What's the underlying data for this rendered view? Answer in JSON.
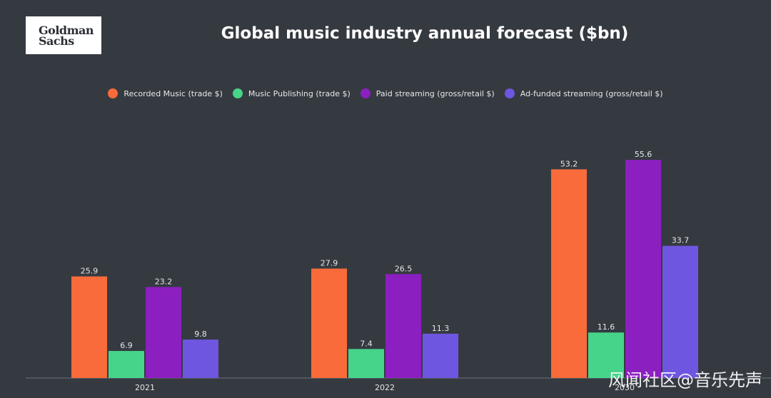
{
  "logo": {
    "line1": "Goldman",
    "line2": "Sachs"
  },
  "chart_data": {
    "type": "bar",
    "title": "Global music industry annual forecast ($bn)",
    "categories": [
      "2021",
      "2022",
      "2030"
    ],
    "series": [
      {
        "name": "Recorded Music (trade $)",
        "color": "#f96b3a",
        "values": [
          25.9,
          27.9,
          53.2
        ]
      },
      {
        "name": "Music Publishing (trade $)",
        "color": "#46d48a",
        "values": [
          6.9,
          7.4,
          11.6
        ]
      },
      {
        "name": "Paid streaming (gross/retail $)",
        "color": "#8b1fc0",
        "values": [
          23.2,
          26.5,
          55.6
        ]
      },
      {
        "name": "Ad-funded streaming (gross/retail $)",
        "color": "#6f56e0",
        "values": [
          9.8,
          11.3,
          33.7
        ]
      }
    ],
    "xlabel": "",
    "ylabel": "",
    "ylim": [
      0,
      60
    ],
    "legend_position": "top-center",
    "grid": false
  },
  "watermark": "风闻社区@音乐先声"
}
